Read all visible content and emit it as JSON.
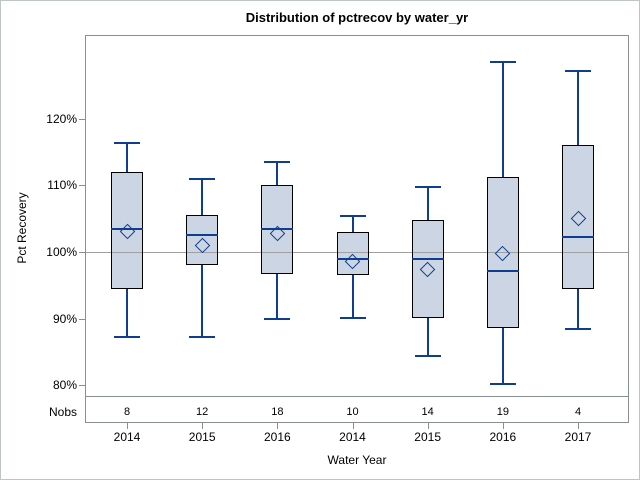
{
  "title": "Distribution of pctrecov by water_yr",
  "chart_data": {
    "type": "boxplot",
    "title": "Distribution of pctrecov by water_yr",
    "xlabel": "Water Year",
    "ylabel": "Pct Recovery",
    "nobs_label": "Nobs",
    "ylim": [
      74.3,
      132.6
    ],
    "y_ticks": [
      80,
      90,
      100,
      110,
      120
    ],
    "y_tick_labels": [
      "80%",
      "90%",
      "100%",
      "110%",
      "120%"
    ],
    "reference_line": 100,
    "grid": "off",
    "legend": "none",
    "categories": [
      "2014",
      "2015",
      "2016",
      "2014",
      "2015",
      "2016",
      "2017"
    ],
    "nobs": [
      8,
      12,
      18,
      10,
      14,
      19,
      4
    ],
    "series": [
      {
        "category": "2014",
        "nobs": 8,
        "whisker_low": 87.2,
        "q1": 94.5,
        "median": 103.5,
        "mean": 103.0,
        "q3": 112.0,
        "whisker_high": 116.3
      },
      {
        "category": "2015",
        "nobs": 12,
        "whisker_low": 87.2,
        "q1": 98.0,
        "median": 102.5,
        "mean": 101.0,
        "q3": 105.6,
        "whisker_high": 110.9
      },
      {
        "category": "2016",
        "nobs": 18,
        "whisker_low": 90.0,
        "q1": 96.7,
        "median": 103.4,
        "mean": 102.8,
        "q3": 110.1,
        "whisker_high": 113.5
      },
      {
        "category": "2014",
        "nobs": 10,
        "whisker_low": 90.1,
        "q1": 96.5,
        "median": 99.0,
        "mean": 98.5,
        "q3": 103.0,
        "whisker_high": 105.4
      },
      {
        "category": "2015",
        "nobs": 14,
        "whisker_low": 84.4,
        "q1": 90.1,
        "median": 99.0,
        "mean": 97.3,
        "q3": 104.8,
        "whisker_high": 109.7
      },
      {
        "category": "2016",
        "nobs": 19,
        "whisker_low": 80.2,
        "q1": 88.6,
        "median": 97.2,
        "mean": 99.7,
        "q3": 111.3,
        "whisker_high": 128.5
      },
      {
        "category": "2017",
        "nobs": 4,
        "whisker_low": 88.4,
        "q1": 94.4,
        "median": 102.3,
        "mean": 105.1,
        "q3": 116.0,
        "whisker_high": 127.2
      }
    ],
    "colors": {
      "box_fill": "#ccd5e4",
      "box_border": "#000000",
      "whisker": "#0f3e8e",
      "median": "#0f3e8e",
      "mean_marker": "#0f3e8e",
      "reference_line": "#a0a0a0",
      "frame": "#878f94",
      "text": "#000000",
      "background": "#ffffff"
    }
  }
}
